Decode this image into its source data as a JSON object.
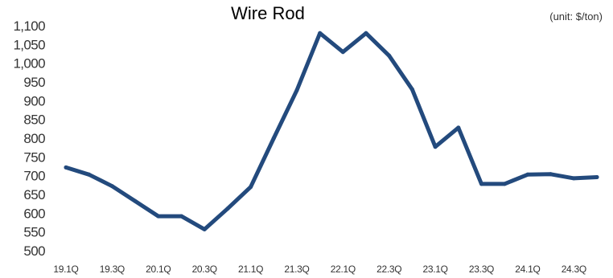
{
  "chart_data": {
    "type": "line",
    "title": "Wire Rod",
    "unit_note": "(unit: $/ton)",
    "xlabel": "",
    "ylabel": "",
    "ylim": [
      500,
      1100
    ],
    "y_ticks": [
      "500",
      "550",
      "600",
      "650",
      "700",
      "750",
      "800",
      "850",
      "900",
      "950",
      "1,000",
      "1,050",
      "1,100"
    ],
    "grid": false,
    "line_color": "#234a7d",
    "categories": [
      "19.1Q",
      "19.2Q",
      "19.3Q",
      "19.4Q",
      "20.1Q",
      "20.2Q",
      "20.3Q",
      "20.4Q",
      "21.1Q",
      "21.2Q",
      "21.3Q",
      "21.4Q",
      "22.1Q",
      "22.2Q",
      "22.3Q",
      "22.4Q",
      "23.1Q",
      "23.2Q",
      "23.3Q",
      "23.4Q",
      "24.1Q",
      "24.2Q",
      "24.3Q",
      "24.4Q"
    ],
    "x_tick_labels": [
      "19.1Q",
      "19.3Q",
      "20.1Q",
      "20.3Q",
      "21.1Q",
      "21.3Q",
      "22.1Q",
      "22.3Q",
      "23.1Q",
      "23.3Q",
      "24.1Q",
      "24.3Q"
    ],
    "series": [
      {
        "values": [
          722,
          703,
          672,
          632,
          592,
          592,
          557,
          612,
          670,
          800,
          928,
          1080,
          1030,
          1080,
          1020,
          930,
          777,
          828,
          678,
          678,
          703,
          704,
          693,
          696
        ]
      }
    ]
  }
}
